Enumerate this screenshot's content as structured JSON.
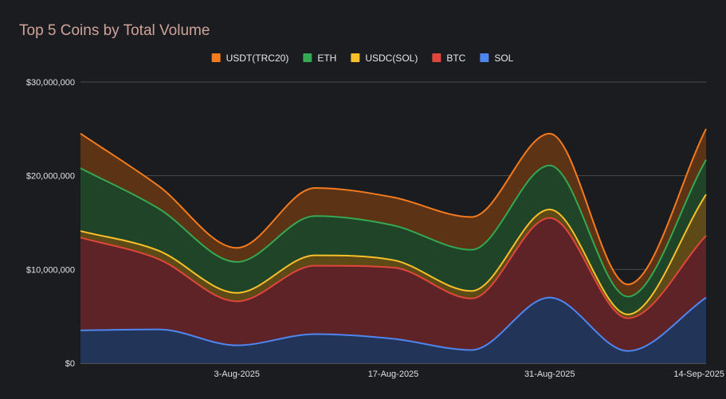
{
  "chart_data": {
    "type": "area",
    "stacked": true,
    "title": "Top 5 Coins by Total Volume",
    "x": [
      "20-Jul-2025",
      "27-Jul-2025",
      "3-Aug-2025",
      "10-Aug-2025",
      "17-Aug-2025",
      "24-Aug-2025",
      "31-Aug-2025",
      "7-Sep-2025",
      "14-Sep-2025"
    ],
    "x_tick_labels": [
      "3-Aug-2025",
      "17-Aug-2025",
      "31-Aug-2025",
      "14-Sep-2025"
    ],
    "ylim": [
      0,
      30000000
    ],
    "y_ticks": [
      0,
      10000000,
      20000000,
      30000000
    ],
    "y_tick_labels": [
      "$0",
      "$10,000,000",
      "$20,000,000",
      "$30,000,000"
    ],
    "legend_position": "top",
    "series": [
      {
        "name": "SOL",
        "color": "#4e86f0",
        "fill": "#233459",
        "values": [
          3500000,
          3600000,
          1900000,
          3100000,
          2600000,
          1400000,
          7000000,
          1300000,
          7000000
        ]
      },
      {
        "name": "BTC",
        "color": "#e0463a",
        "fill": "#5e2327",
        "values": [
          9900000,
          7500000,
          4700000,
          7300000,
          7600000,
          5500000,
          8500000,
          3500000,
          6600000
        ]
      },
      {
        "name": "USDC(SOL)",
        "color": "#f8c02a",
        "fill": "#5d4a16",
        "values": [
          700000,
          900000,
          900000,
          1100000,
          800000,
          800000,
          900000,
          400000,
          4400000
        ]
      },
      {
        "name": "ETH",
        "color": "#34a853",
        "fill": "#1f4428",
        "values": [
          6700000,
          4500000,
          3300000,
          4200000,
          3700000,
          4400000,
          4700000,
          1900000,
          3700000
        ]
      },
      {
        "name": "USDT(TRC20)",
        "color": "#f57b1f",
        "fill": "#5c3314",
        "values": [
          3700000,
          2400000,
          1500000,
          3000000,
          3000000,
          3500000,
          3400000,
          1300000,
          3300000
        ]
      }
    ],
    "legend_order": [
      "USDT(TRC20)",
      "ETH",
      "USDC(SOL)",
      "BTC",
      "SOL"
    ]
  }
}
